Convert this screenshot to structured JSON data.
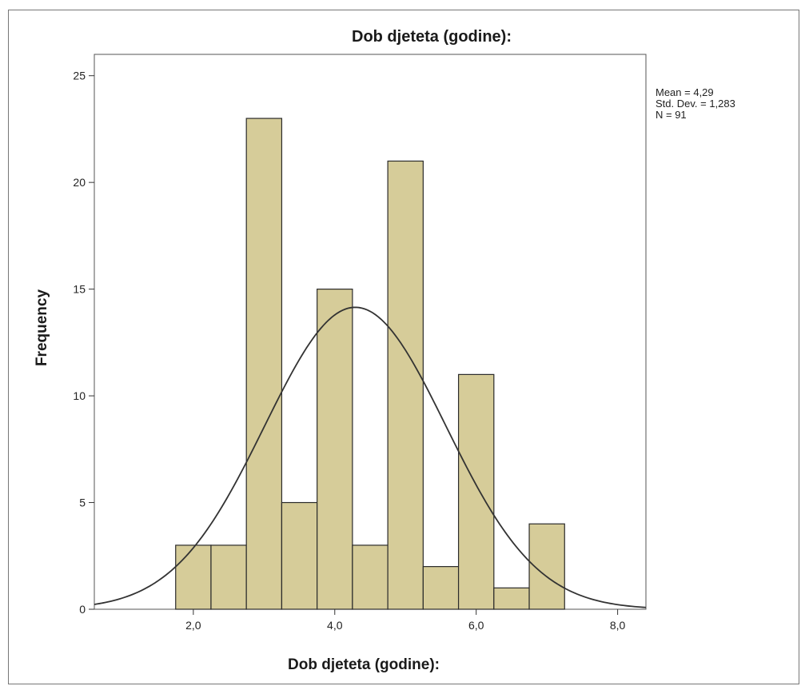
{
  "chart_data": {
    "type": "bar",
    "subtype": "histogram",
    "title": "Dob djeteta (godine):",
    "xlabel": "Dob djeteta (godine):",
    "ylabel": "Frequency",
    "xlim": [
      0.6,
      8.4
    ],
    "ylim": [
      0,
      26
    ],
    "x_ticks": [
      2.0,
      4.0,
      6.0,
      8.0
    ],
    "x_tick_labels": [
      "2,0",
      "4,0",
      "6,0",
      "8,0"
    ],
    "y_ticks": [
      0,
      5,
      10,
      15,
      20,
      25
    ],
    "y_tick_labels": [
      "0",
      "5",
      "10",
      "15",
      "20",
      "25"
    ],
    "bin_width": 0.5,
    "bins": [
      {
        "start": 1.75,
        "end": 2.25,
        "count": 3
      },
      {
        "start": 2.25,
        "end": 2.75,
        "count": 3
      },
      {
        "start": 2.75,
        "end": 3.25,
        "count": 23
      },
      {
        "start": 3.25,
        "end": 3.75,
        "count": 5
      },
      {
        "start": 3.75,
        "end": 4.25,
        "count": 15
      },
      {
        "start": 4.25,
        "end": 4.75,
        "count": 3
      },
      {
        "start": 4.75,
        "end": 5.25,
        "count": 21
      },
      {
        "start": 5.25,
        "end": 5.75,
        "count": 2
      },
      {
        "start": 5.75,
        "end": 6.25,
        "count": 11
      },
      {
        "start": 6.25,
        "end": 6.75,
        "count": 1
      },
      {
        "start": 6.75,
        "end": 7.25,
        "count": 4
      }
    ],
    "normal_curve": {
      "mean": 4.29,
      "sd": 1.283,
      "n": 91
    },
    "stats_text": [
      "Mean = 4,29",
      "Std. Dev. = 1,283",
      "N = 91"
    ],
    "colors": {
      "bar_fill": "#d6cc99",
      "bar_stroke": "#2b2b2b",
      "curve": "#333333",
      "axis": "#333333"
    },
    "grid": false,
    "legend": "none"
  }
}
